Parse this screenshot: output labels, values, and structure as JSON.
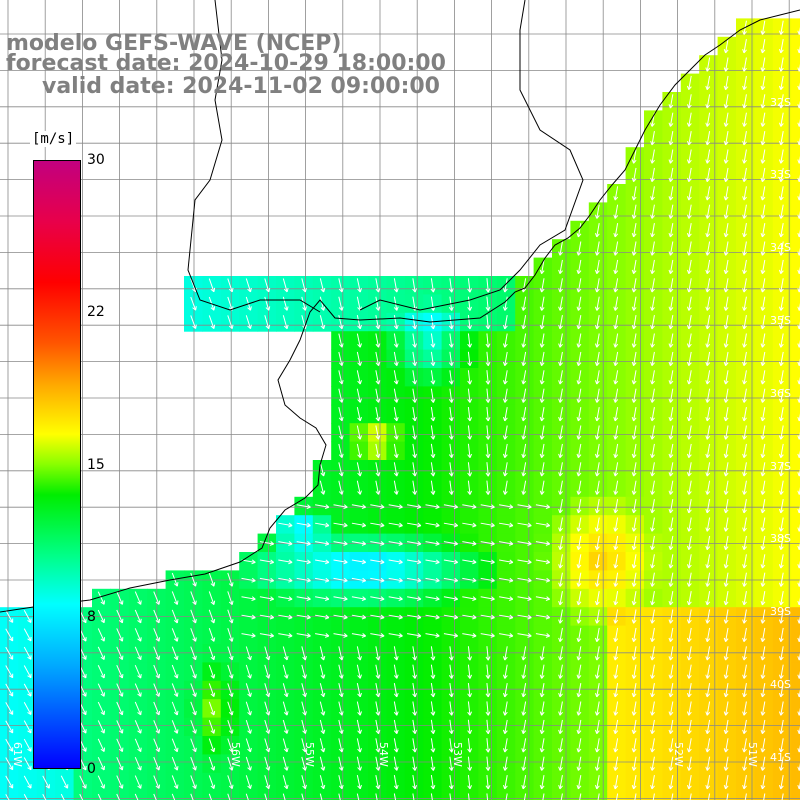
{
  "title": {
    "line1": "modelo GEFS-WAVE (NCEP)",
    "line2": "forecast date: 2024-10-29 18:00:00",
    "line3": "valid date: 2024-11-02 09:00:00"
  },
  "colorbar": {
    "unit": "[m/s]",
    "ticks": [
      "30",
      "22",
      "15",
      "8",
      "0"
    ]
  },
  "lat_labels": [
    "32S",
    "33S",
    "34S",
    "35S",
    "36S",
    "37S",
    "38S",
    "39S",
    "40S",
    "41S"
  ],
  "lon_labels": [
    "61W",
    "56W",
    "55W",
    "54W",
    "53W",
    "52W",
    "51W"
  ],
  "map": {
    "variable": "wind speed",
    "projection": "lat-lon grid",
    "colors": {
      "land": "#ffffff",
      "grid": "#888888",
      "coast": "#000000",
      "arrow": "#ffffff"
    },
    "regions": {
      "calm_zone_low_speed": "blue",
      "coastal_light": "cyan",
      "open_ocean": "green-yellow"
    }
  }
}
